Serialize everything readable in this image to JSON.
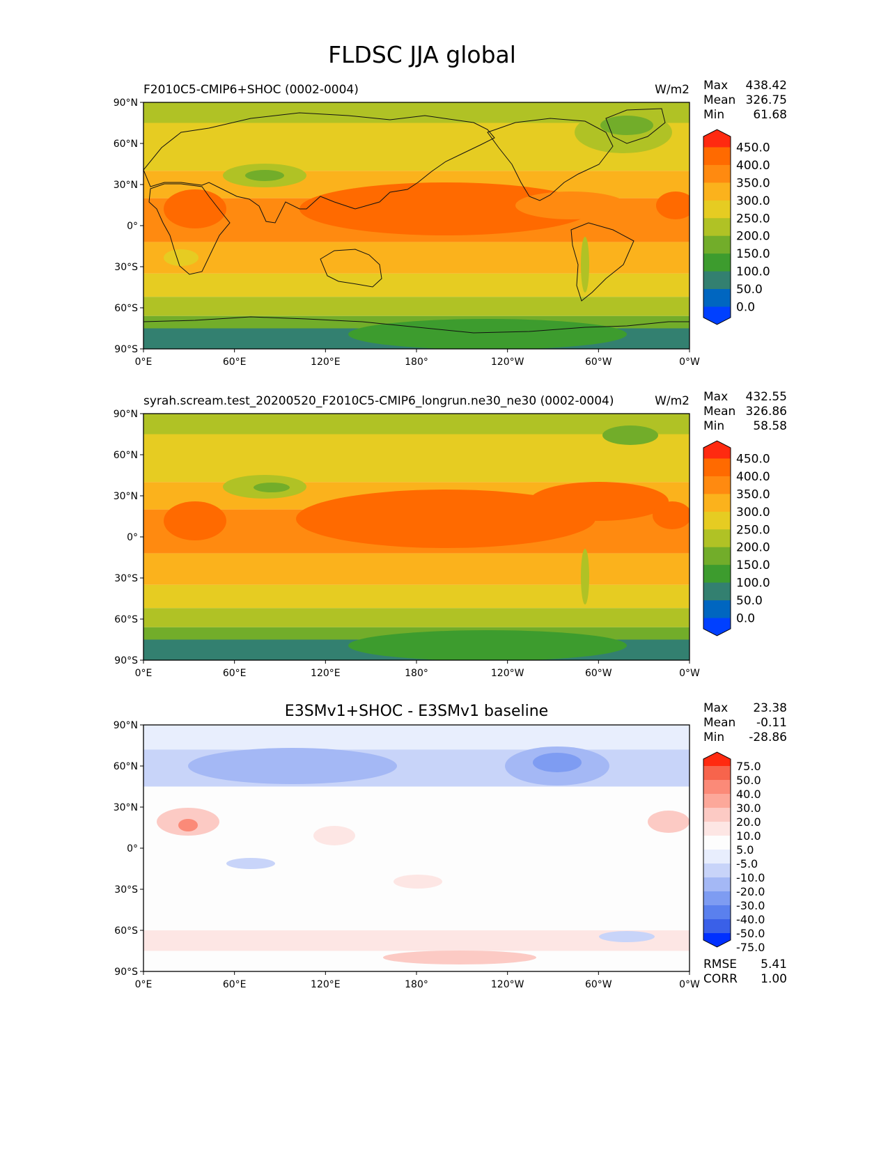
{
  "page_title": "FLDSC JJA global",
  "colors": {
    "full_field": [
      "#0040ff",
      "#0066c0",
      "#338070",
      "#3d9c2e",
      "#72ad2a",
      "#b0c225",
      "#e6cc22",
      "#fbb21c",
      "#ff8a10",
      "#ff6a00",
      "#ff2a10"
    ],
    "diff_field": [
      "#0030ff",
      "#3a60e8",
      "#5a80ee",
      "#7e9cf2",
      "#a4b8f5",
      "#c8d4f9",
      "#e8eefd",
      "#fdfdfd",
      "#fde6e4",
      "#fccac4",
      "#fca89a",
      "#fb8a78",
      "#f7644c",
      "#ff2a10"
    ],
    "land_outline": "#111111"
  },
  "chart_data": [
    {
      "type": "heatmap",
      "panel": "test",
      "title": "F2010C5-CMIP6+SHOC (0002-0004)",
      "units": "W/m2",
      "stats": {
        "max_label": "Max",
        "max": "438.42",
        "mean_label": "Mean",
        "mean": "326.75",
        "min_label": "Min",
        "min": "61.68"
      },
      "x_ticks": [
        "0°E",
        "60°E",
        "120°E",
        "180°",
        "120°W",
        "60°W",
        "0°W"
      ],
      "y_ticks": [
        "90°N",
        "60°N",
        "30°N",
        "0°",
        "30°S",
        "60°S",
        "90°S"
      ],
      "xlim": [
        0,
        360
      ],
      "ylim": [
        -90,
        90
      ],
      "colorbar_levels": [
        "450.0",
        "400.0",
        "350.0",
        "300.0",
        "250.0",
        "200.0",
        "150.0",
        "100.0",
        "50.0",
        "0.0"
      ],
      "zonal_bands": [
        {
          "lat": [
            90,
            75
          ],
          "value": 210
        },
        {
          "lat": [
            75,
            40
          ],
          "value": 280
        },
        {
          "lat": [
            40,
            20
          ],
          "value": 330
        },
        {
          "lat": [
            20,
            -12
          ],
          "value": 375
        },
        {
          "lat": [
            -12,
            -35
          ],
          "value": 330
        },
        {
          "lat": [
            -35,
            -52
          ],
          "value": 280
        },
        {
          "lat": [
            -52,
            -66
          ],
          "value": 215
        },
        {
          "lat": [
            -66,
            -75
          ],
          "value": 150
        },
        {
          "lat": [
            -75,
            -90
          ],
          "value": 90
        }
      ]
    },
    {
      "type": "heatmap",
      "panel": "reference",
      "title": "syrah.scream.test_20200520_F2010C5-CMIP6_longrun.ne30_ne30 (0002-0004)",
      "units": "W/m2",
      "stats": {
        "max_label": "Max",
        "max": "432.55",
        "mean_label": "Mean",
        "mean": "326.86",
        "min_label": "Min",
        "min": "58.58"
      },
      "x_ticks": [
        "0°E",
        "60°E",
        "120°E",
        "180°",
        "120°W",
        "60°W",
        "0°W"
      ],
      "y_ticks": [
        "90°N",
        "60°N",
        "30°N",
        "0°",
        "30°S",
        "60°S",
        "90°S"
      ],
      "xlim": [
        0,
        360
      ],
      "ylim": [
        -90,
        90
      ],
      "colorbar_levels": [
        "450.0",
        "400.0",
        "350.0",
        "300.0",
        "250.0",
        "200.0",
        "150.0",
        "100.0",
        "50.0",
        "0.0"
      ],
      "zonal_bands": [
        {
          "lat": [
            90,
            75
          ],
          "value": 215
        },
        {
          "lat": [
            75,
            40
          ],
          "value": 290
        },
        {
          "lat": [
            40,
            20
          ],
          "value": 335
        },
        {
          "lat": [
            20,
            -12
          ],
          "value": 378
        },
        {
          "lat": [
            -12,
            -35
          ],
          "value": 330
        },
        {
          "lat": [
            -35,
            -52
          ],
          "value": 280
        },
        {
          "lat": [
            -52,
            -66
          ],
          "value": 215
        },
        {
          "lat": [
            -66,
            -75
          ],
          "value": 150
        },
        {
          "lat": [
            -75,
            -90
          ],
          "value": 90
        }
      ]
    },
    {
      "type": "heatmap",
      "panel": "difference",
      "title": "E3SMv1+SHOC - E3SMv1 baseline",
      "units": "",
      "stats": {
        "max_label": "Max",
        "max": "23.38",
        "mean_label": "Mean",
        "mean": "-0.11",
        "min_label": "Min",
        "min": "-28.86"
      },
      "extra_stats": {
        "rmse_label": "RMSE",
        "rmse": "5.41",
        "corr_label": "CORR",
        "corr": "1.00"
      },
      "x_ticks": [
        "0°E",
        "60°E",
        "120°E",
        "180°",
        "120°W",
        "60°W",
        "0°W"
      ],
      "y_ticks": [
        "90°N",
        "60°N",
        "30°N",
        "0°",
        "30°S",
        "60°S",
        "90°S"
      ],
      "xlim": [
        0,
        360
      ],
      "ylim": [
        -90,
        90
      ],
      "colorbar_levels": [
        "75.0",
        "50.0",
        "40.0",
        "30.0",
        "20.0",
        "10.0",
        "5.0",
        "-5.0",
        "-10.0",
        "-20.0",
        "-30.0",
        "-40.0",
        "-50.0",
        "-75.0"
      ],
      "zonal_bands": [
        {
          "lat": [
            90,
            72
          ],
          "value": -7
        },
        {
          "lat": [
            72,
            45
          ],
          "value": -12
        },
        {
          "lat": [
            45,
            -60
          ],
          "value": 0
        },
        {
          "lat": [
            -60,
            -75
          ],
          "value": 7
        },
        {
          "lat": [
            -75,
            -90
          ],
          "value": 0
        }
      ]
    }
  ]
}
